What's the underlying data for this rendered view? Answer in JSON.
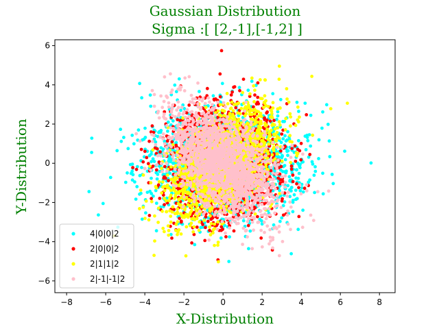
{
  "chart_data": {
    "type": "scatter",
    "title": "Gaussian Distribution",
    "subtitle": "Sigma :[ [2,-1],[-1,2] ]",
    "xlabel": "X-Distribution",
    "ylabel": "Y-Distribution",
    "xlim": [
      -8.6,
      8.8
    ],
    "ylim": [
      -6.6,
      6.3
    ],
    "xticks": [
      -8,
      -6,
      -4,
      -2,
      0,
      2,
      4,
      6,
      8
    ],
    "yticks": [
      -6,
      -4,
      -2,
      0,
      2,
      4,
      6
    ],
    "xtick_labels": [
      "−8",
      "−6",
      "−4",
      "−2",
      "0",
      "2",
      "4",
      "6",
      "8"
    ],
    "ytick_labels": [
      "−6",
      "−4",
      "−2",
      "0",
      "2",
      "4",
      "6"
    ],
    "legend_position": "lower-left",
    "grid": false,
    "series": [
      {
        "name": "4|0|0|2",
        "color": "#00ffff",
        "cov": [
          [
            4,
            0
          ],
          [
            0,
            2
          ]
        ],
        "mean": [
          0,
          0
        ],
        "n": 1800
      },
      {
        "name": "2|0|0|2",
        "color": "#ff0000",
        "cov": [
          [
            2,
            0
          ],
          [
            0,
            2
          ]
        ],
        "mean": [
          0,
          0
        ],
        "n": 1800
      },
      {
        "name": "2|1|1|2",
        "color": "#ffff00",
        "cov": [
          [
            2,
            1
          ],
          [
            1,
            2
          ]
        ],
        "mean": [
          0,
          0
        ],
        "n": 1800
      },
      {
        "name": "2|-1|-1|2",
        "color": "#ffc0cb",
        "cov": [
          [
            2,
            -1
          ],
          [
            -1,
            2
          ]
        ],
        "mean": [
          0,
          0
        ],
        "n": 1800
      }
    ]
  }
}
